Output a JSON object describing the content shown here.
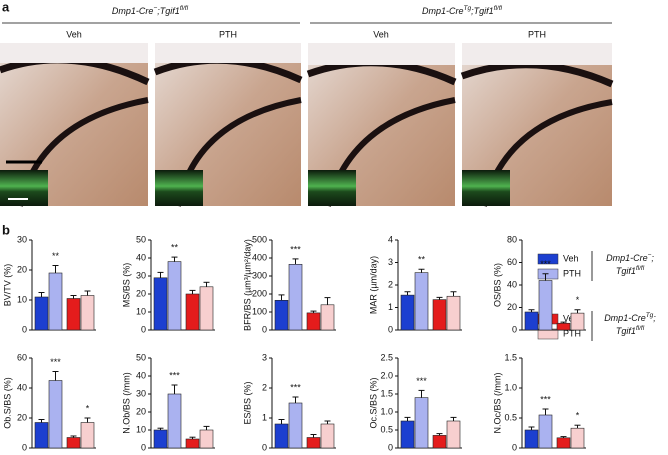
{
  "figure": {
    "panel_a": "a",
    "panel_b": "b",
    "groups": [
      [
        [
          "Dmp1-Cre",
          "−"
        ],
        [
          ";Tgif1",
          "fl/fl"
        ]
      ],
      [
        [
          "Dmp1-Cre",
          "Tg"
        ],
        [
          ";Tgif1",
          "fl/fl"
        ]
      ]
    ],
    "image_labels": [
      "Veh",
      "PTH",
      "Veh",
      "PTH"
    ],
    "legend": [
      {
        "items": [
          "Veh",
          "PTH"
        ],
        "colors": [
          "#1c3fd0",
          "#aab2f0"
        ],
        "genotype": [
          [
            [
              "Dmp1-Cre",
              "−"
            ],
            [
              ";",
              null
            ]
          ],
          [
            [
              "Tgif1",
              "fl/fl"
            ]
          ]
        ]
      },
      {
        "items": [
          "Veh",
          "PTH"
        ],
        "colors": [
          "#e41c1c",
          "#f7cfcf"
        ],
        "genotype": [
          [
            [
              "Dmp1-Cre",
              "Tg"
            ],
            [
              ";",
              null
            ]
          ],
          [
            [
              "Tgif1",
              "fl/fl"
            ]
          ]
        ]
      }
    ]
  },
  "chart_data": [
    {
      "type": "bar",
      "ylabel": "BV/TV (%)",
      "values": [
        11,
        19,
        10.5,
        11.5
      ],
      "errors": [
        1.5,
        2.5,
        1,
        1.5
      ],
      "colors": [
        "#1c3fd0",
        "#aab2f0",
        "#e41c1c",
        "#f7cfcf"
      ],
      "significance": [
        null,
        "**",
        null,
        null
      ],
      "ylim": [
        0,
        30
      ],
      "yticks": [
        0,
        10,
        20,
        30
      ]
    },
    {
      "type": "bar",
      "ylabel": "MS/BS (%)",
      "values": [
        29,
        38,
        20,
        24
      ],
      "errors": [
        3,
        2.5,
        2,
        2.5
      ],
      "colors": [
        "#1c3fd0",
        "#aab2f0",
        "#e41c1c",
        "#f7cfcf"
      ],
      "significance": [
        null,
        "**",
        null,
        null
      ],
      "ylim": [
        0,
        50
      ],
      "yticks": [
        0,
        10,
        20,
        30,
        40,
        50
      ]
    },
    {
      "type": "bar",
      "ylabel": "BFR/BS (µm³/µm²/day)",
      "values": [
        165,
        365,
        95,
        140
      ],
      "errors": [
        30,
        30,
        10,
        40
      ],
      "colors": [
        "#1c3fd0",
        "#aab2f0",
        "#e41c1c",
        "#f7cfcf"
      ],
      "significance": [
        null,
        "***",
        null,
        null
      ],
      "ylim": [
        0,
        500
      ],
      "yticks": [
        0,
        100,
        200,
        300,
        400,
        500
      ]
    },
    {
      "type": "bar",
      "ylabel": "MAR (µm/day)",
      "values": [
        1.55,
        2.55,
        1.35,
        1.5
      ],
      "errors": [
        0.15,
        0.15,
        0.1,
        0.2
      ],
      "colors": [
        "#1c3fd0",
        "#aab2f0",
        "#e41c1c",
        "#f7cfcf"
      ],
      "significance": [
        null,
        "**",
        null,
        null
      ],
      "ylim": [
        0,
        4
      ],
      "yticks": [
        0,
        1,
        2,
        3,
        4
      ]
    },
    {
      "type": "bar",
      "ylabel": "OS/BS (%)",
      "values": [
        16,
        44,
        6,
        15
      ],
      "errors": [
        2,
        6,
        1,
        3
      ],
      "colors": [
        "#1c3fd0",
        "#aab2f0",
        "#e41c1c",
        "#f7cfcf"
      ],
      "significance": [
        null,
        "***",
        null,
        "*"
      ],
      "ylim": [
        0,
        80
      ],
      "yticks": [
        0,
        20,
        40,
        60,
        80
      ]
    },
    {
      "type": "bar",
      "ylabel": "Ob.S/BS (%)",
      "values": [
        17,
        45,
        7,
        17
      ],
      "errors": [
        2,
        6,
        1,
        3
      ],
      "colors": [
        "#1c3fd0",
        "#aab2f0",
        "#e41c1c",
        "#f7cfcf"
      ],
      "significance": [
        null,
        "***",
        null,
        "*"
      ],
      "ylim": [
        0,
        60
      ],
      "yticks": [
        0,
        20,
        40,
        60
      ]
    },
    {
      "type": "bar",
      "ylabel": "N.Ob/BS (/mm)",
      "values": [
        10,
        30,
        5,
        10
      ],
      "errors": [
        1,
        5,
        1,
        2
      ],
      "colors": [
        "#1c3fd0",
        "#aab2f0",
        "#e41c1c",
        "#f7cfcf"
      ],
      "significance": [
        null,
        "***",
        null,
        null
      ],
      "ylim": [
        0,
        50
      ],
      "yticks": [
        0,
        10,
        20,
        30,
        40,
        50
      ]
    },
    {
      "type": "bar",
      "ylabel": "ES/BS (%)",
      "values": [
        0.8,
        1.5,
        0.35,
        0.8
      ],
      "errors": [
        0.15,
        0.2,
        0.1,
        0.1
      ],
      "colors": [
        "#1c3fd0",
        "#aab2f0",
        "#e41c1c",
        "#f7cfcf"
      ],
      "significance": [
        null,
        "***",
        null,
        null
      ],
      "ylim": [
        0,
        3
      ],
      "yticks": [
        0,
        1,
        2,
        3
      ]
    },
    {
      "type": "bar",
      "ylabel": "Oc.S/BS (%)",
      "values": [
        0.75,
        1.4,
        0.35,
        0.75
      ],
      "errors": [
        0.1,
        0.2,
        0.05,
        0.1
      ],
      "colors": [
        "#1c3fd0",
        "#aab2f0",
        "#e41c1c",
        "#f7cfcf"
      ],
      "significance": [
        null,
        "***",
        null,
        null
      ],
      "ylim": [
        0,
        2.5
      ],
      "yticks": [
        0,
        0.5,
        {
          "value": 1,
          "label": "1.0"
        },
        1.5,
        {
          "value": 2,
          "label": "2.0"
        },
        2.5
      ]
    },
    {
      "type": "bar",
      "ylabel": "N.Oc/BS (/mm)",
      "values": [
        0.3,
        0.55,
        0.17,
        0.33
      ],
      "errors": [
        0.05,
        0.1,
        0.02,
        0.05
      ],
      "colors": [
        "#1c3fd0",
        "#aab2f0",
        "#e41c1c",
        "#f7cfcf"
      ],
      "significance": [
        null,
        "***",
        null,
        "*"
      ],
      "ylim": [
        0,
        1.5
      ],
      "yticks": [
        0,
        0.5,
        {
          "value": 1,
          "label": "1.0"
        },
        1.5
      ]
    }
  ]
}
